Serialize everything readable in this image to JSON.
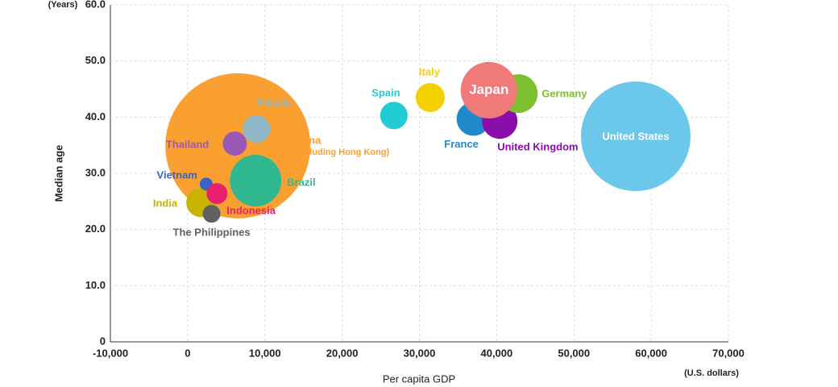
{
  "chart_data": {
    "type": "bubble",
    "x_label": "Per capita GDP",
    "x_unit": "(U.S. dollars)",
    "y_label": "Median age",
    "y_unit": "(Years)",
    "xlim": [
      -10000,
      70000
    ],
    "xticks": [
      {
        "value": -10000,
        "label": "-10,000"
      },
      0,
      {
        "value": 10000,
        "label": "10,000"
      },
      {
        "value": 20000,
        "label": "20,000"
      },
      {
        "value": 30000,
        "label": "30,000"
      },
      {
        "value": 40000,
        "label": "40,000"
      },
      {
        "value": 50000,
        "label": "50,000"
      },
      {
        "value": 60000,
        "label": "60,000"
      },
      {
        "value": 70000,
        "label": "70,000"
      }
    ],
    "ylim": [
      0,
      60
    ],
    "yticks": [
      0,
      {
        "value": 10,
        "label": "10.0"
      },
      {
        "value": 20,
        "label": "20.0"
      },
      {
        "value": 30,
        "label": "30.0"
      },
      {
        "value": 40,
        "label": "40.0"
      },
      {
        "value": 50,
        "label": "50.0"
      },
      {
        "value": 60,
        "label": "60.0"
      }
    ],
    "grid": true,
    "points": [
      {
        "name": "China",
        "sublabel": "(excluding Hong Kong)",
        "x": 6500,
        "y": 34.9,
        "size": 90,
        "color": "#f9a030"
      },
      {
        "name": "Russia",
        "x": 8900,
        "y": 37.9,
        "size": 17,
        "color": "#8fb8c8"
      },
      {
        "name": "Thailand",
        "x": 6100,
        "y": 35.3,
        "size": 15,
        "color": "#9b59b6"
      },
      {
        "name": "Brazil",
        "x": 8800,
        "y": 28.7,
        "size": 32,
        "color": "#2fb890"
      },
      {
        "name": "India",
        "x": 1700,
        "y": 24.8,
        "size": 18,
        "color": "#c8b400"
      },
      {
        "name": "Vietnam",
        "x": 2400,
        "y": 28.1,
        "size": 8,
        "color": "#3a62c8"
      },
      {
        "name": "Indonesia",
        "x": 3800,
        "y": 26.4,
        "size": 13,
        "color": "#e8206e"
      },
      {
        "name": "The Philippines",
        "x": 3100,
        "y": 22.8,
        "size": 11,
        "color": "#606060"
      },
      {
        "name": "Spain",
        "x": 26700,
        "y": 40.3,
        "size": 17,
        "color": "#22ccd4"
      },
      {
        "name": "Italy",
        "x": 31400,
        "y": 43.5,
        "size": 18,
        "color": "#f5d000"
      },
      {
        "name": "France",
        "x": 37000,
        "y": 39.7,
        "size": 21,
        "color": "#2288cc"
      },
      {
        "name": "United Kingdom",
        "x": 40400,
        "y": 39.3,
        "size": 22,
        "color": "#8b0eab"
      },
      {
        "name": "Germany",
        "x": 42800,
        "y": 44.2,
        "size": 24,
        "color": "#7dbf2f"
      },
      {
        "name": "Japan",
        "x": 39000,
        "y": 44.8,
        "size": 35,
        "color": "#f07a7a"
      },
      {
        "name": "United States",
        "x": 58000,
        "y": 36.6,
        "size": 68,
        "color": "#6cc8ea"
      }
    ]
  }
}
